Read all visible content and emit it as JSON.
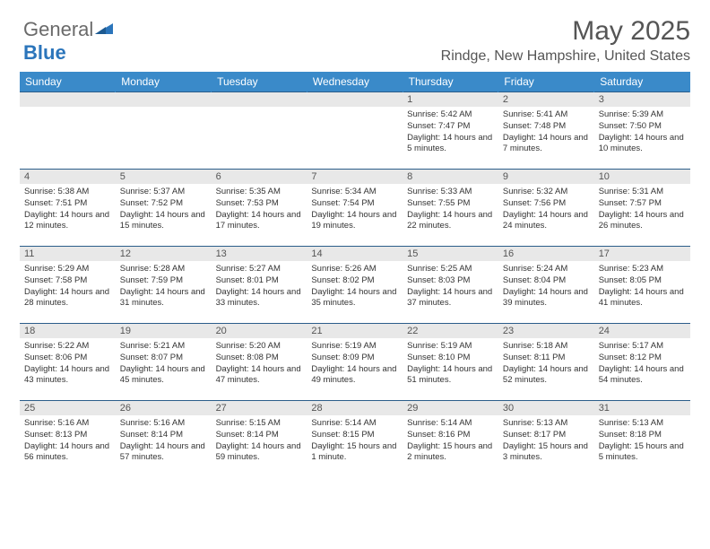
{
  "brand": {
    "part1": "General",
    "part2": "Blue"
  },
  "title": "May 2025",
  "location": "Rindge, New Hampshire, United States",
  "style": {
    "header_bg": "#3a8ac9",
    "header_fg": "#ffffff",
    "row_border": "#2b5d8a",
    "daynum_bg": "#e8e8e8",
    "text_color": "#333333",
    "title_color": "#555555",
    "title_fontsize": 30,
    "location_fontsize": 16,
    "daynum_fontsize": 11,
    "body_fontsize": 9.5
  },
  "day_headers": [
    "Sunday",
    "Monday",
    "Tuesday",
    "Wednesday",
    "Thursday",
    "Friday",
    "Saturday"
  ],
  "weeks": [
    [
      {
        "n": "",
        "sr": "",
        "ss": "",
        "dl": ""
      },
      {
        "n": "",
        "sr": "",
        "ss": "",
        "dl": ""
      },
      {
        "n": "",
        "sr": "",
        "ss": "",
        "dl": ""
      },
      {
        "n": "",
        "sr": "",
        "ss": "",
        "dl": ""
      },
      {
        "n": "1",
        "sr": "Sunrise: 5:42 AM",
        "ss": "Sunset: 7:47 PM",
        "dl": "Daylight: 14 hours and 5 minutes."
      },
      {
        "n": "2",
        "sr": "Sunrise: 5:41 AM",
        "ss": "Sunset: 7:48 PM",
        "dl": "Daylight: 14 hours and 7 minutes."
      },
      {
        "n": "3",
        "sr": "Sunrise: 5:39 AM",
        "ss": "Sunset: 7:50 PM",
        "dl": "Daylight: 14 hours and 10 minutes."
      }
    ],
    [
      {
        "n": "4",
        "sr": "Sunrise: 5:38 AM",
        "ss": "Sunset: 7:51 PM",
        "dl": "Daylight: 14 hours and 12 minutes."
      },
      {
        "n": "5",
        "sr": "Sunrise: 5:37 AM",
        "ss": "Sunset: 7:52 PM",
        "dl": "Daylight: 14 hours and 15 minutes."
      },
      {
        "n": "6",
        "sr": "Sunrise: 5:35 AM",
        "ss": "Sunset: 7:53 PM",
        "dl": "Daylight: 14 hours and 17 minutes."
      },
      {
        "n": "7",
        "sr": "Sunrise: 5:34 AM",
        "ss": "Sunset: 7:54 PM",
        "dl": "Daylight: 14 hours and 19 minutes."
      },
      {
        "n": "8",
        "sr": "Sunrise: 5:33 AM",
        "ss": "Sunset: 7:55 PM",
        "dl": "Daylight: 14 hours and 22 minutes."
      },
      {
        "n": "9",
        "sr": "Sunrise: 5:32 AM",
        "ss": "Sunset: 7:56 PM",
        "dl": "Daylight: 14 hours and 24 minutes."
      },
      {
        "n": "10",
        "sr": "Sunrise: 5:31 AM",
        "ss": "Sunset: 7:57 PM",
        "dl": "Daylight: 14 hours and 26 minutes."
      }
    ],
    [
      {
        "n": "11",
        "sr": "Sunrise: 5:29 AM",
        "ss": "Sunset: 7:58 PM",
        "dl": "Daylight: 14 hours and 28 minutes."
      },
      {
        "n": "12",
        "sr": "Sunrise: 5:28 AM",
        "ss": "Sunset: 7:59 PM",
        "dl": "Daylight: 14 hours and 31 minutes."
      },
      {
        "n": "13",
        "sr": "Sunrise: 5:27 AM",
        "ss": "Sunset: 8:01 PM",
        "dl": "Daylight: 14 hours and 33 minutes."
      },
      {
        "n": "14",
        "sr": "Sunrise: 5:26 AM",
        "ss": "Sunset: 8:02 PM",
        "dl": "Daylight: 14 hours and 35 minutes."
      },
      {
        "n": "15",
        "sr": "Sunrise: 5:25 AM",
        "ss": "Sunset: 8:03 PM",
        "dl": "Daylight: 14 hours and 37 minutes."
      },
      {
        "n": "16",
        "sr": "Sunrise: 5:24 AM",
        "ss": "Sunset: 8:04 PM",
        "dl": "Daylight: 14 hours and 39 minutes."
      },
      {
        "n": "17",
        "sr": "Sunrise: 5:23 AM",
        "ss": "Sunset: 8:05 PM",
        "dl": "Daylight: 14 hours and 41 minutes."
      }
    ],
    [
      {
        "n": "18",
        "sr": "Sunrise: 5:22 AM",
        "ss": "Sunset: 8:06 PM",
        "dl": "Daylight: 14 hours and 43 minutes."
      },
      {
        "n": "19",
        "sr": "Sunrise: 5:21 AM",
        "ss": "Sunset: 8:07 PM",
        "dl": "Daylight: 14 hours and 45 minutes."
      },
      {
        "n": "20",
        "sr": "Sunrise: 5:20 AM",
        "ss": "Sunset: 8:08 PM",
        "dl": "Daylight: 14 hours and 47 minutes."
      },
      {
        "n": "21",
        "sr": "Sunrise: 5:19 AM",
        "ss": "Sunset: 8:09 PM",
        "dl": "Daylight: 14 hours and 49 minutes."
      },
      {
        "n": "22",
        "sr": "Sunrise: 5:19 AM",
        "ss": "Sunset: 8:10 PM",
        "dl": "Daylight: 14 hours and 51 minutes."
      },
      {
        "n": "23",
        "sr": "Sunrise: 5:18 AM",
        "ss": "Sunset: 8:11 PM",
        "dl": "Daylight: 14 hours and 52 minutes."
      },
      {
        "n": "24",
        "sr": "Sunrise: 5:17 AM",
        "ss": "Sunset: 8:12 PM",
        "dl": "Daylight: 14 hours and 54 minutes."
      }
    ],
    [
      {
        "n": "25",
        "sr": "Sunrise: 5:16 AM",
        "ss": "Sunset: 8:13 PM",
        "dl": "Daylight: 14 hours and 56 minutes."
      },
      {
        "n": "26",
        "sr": "Sunrise: 5:16 AM",
        "ss": "Sunset: 8:14 PM",
        "dl": "Daylight: 14 hours and 57 minutes."
      },
      {
        "n": "27",
        "sr": "Sunrise: 5:15 AM",
        "ss": "Sunset: 8:14 PM",
        "dl": "Daylight: 14 hours and 59 minutes."
      },
      {
        "n": "28",
        "sr": "Sunrise: 5:14 AM",
        "ss": "Sunset: 8:15 PM",
        "dl": "Daylight: 15 hours and 1 minute."
      },
      {
        "n": "29",
        "sr": "Sunrise: 5:14 AM",
        "ss": "Sunset: 8:16 PM",
        "dl": "Daylight: 15 hours and 2 minutes."
      },
      {
        "n": "30",
        "sr": "Sunrise: 5:13 AM",
        "ss": "Sunset: 8:17 PM",
        "dl": "Daylight: 15 hours and 3 minutes."
      },
      {
        "n": "31",
        "sr": "Sunrise: 5:13 AM",
        "ss": "Sunset: 8:18 PM",
        "dl": "Daylight: 15 hours and 5 minutes."
      }
    ]
  ]
}
